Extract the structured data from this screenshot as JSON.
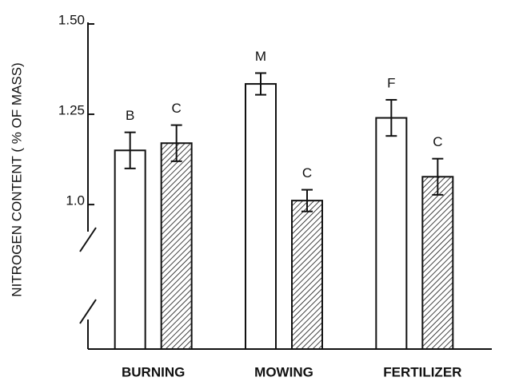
{
  "chart_data": {
    "type": "bar",
    "ylabel": "NITROGEN CONTENT ( % OF MASS)",
    "categories": [
      "BURNING",
      "MOWING",
      "FERTILIZER"
    ],
    "series": [
      {
        "color": "#ffffff",
        "values": [
          1.15,
          1.334,
          1.24
        ],
        "errors": [
          0.05,
          0.03,
          0.05
        ],
        "labels": [
          "B",
          "M",
          "F"
        ]
      },
      {
        "color": "hatch",
        "values": [
          1.17,
          1.011,
          1.077
        ],
        "errors": [
          0.05,
          0.03,
          0.05
        ],
        "labels": [
          "C",
          "C",
          "C"
        ]
      }
    ],
    "ylim": [
      0.6,
      1.5
    ],
    "yticks": [
      {
        "value": 1,
        "label": "1.0"
      },
      1.25,
      {
        "value": 1.5,
        "label": "1.50"
      }
    ]
  }
}
